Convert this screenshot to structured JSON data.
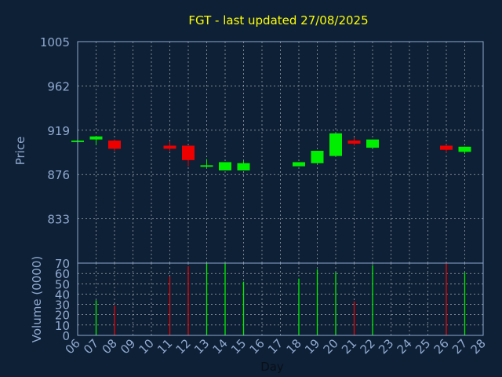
{
  "colors": {
    "background": "#0e2035",
    "grid": "#ffffff",
    "axis_text": "#8fa9d1",
    "title": "#ffff00",
    "up": "#00ee00",
    "down": "#ee0000"
  },
  "chart_data": [
    {
      "type": "candlestick",
      "title": "FGT - last updated 27/08/2025",
      "xlabel": "",
      "ylabel": "Price",
      "ylim": [
        790,
        1005
      ],
      "yticks": [
        833,
        876,
        919,
        962,
        1005
      ],
      "grid": true,
      "candles": [
        {
          "day": "06",
          "open": 908,
          "close": 909,
          "high": 909,
          "low": 908
        },
        {
          "day": "07",
          "open": 910,
          "close": 913,
          "high": 913,
          "low": 905
        },
        {
          "day": "08",
          "open": 909,
          "close": 901,
          "high": 910,
          "low": 899
        },
        {
          "day": "11",
          "open": 904,
          "close": 901,
          "high": 908,
          "low": 899
        },
        {
          "day": "12",
          "open": 904,
          "close": 890,
          "high": 904,
          "low": 884
        },
        {
          "day": "13",
          "open": 884,
          "close": 885,
          "high": 891,
          "low": 883
        },
        {
          "day": "14",
          "open": 880,
          "close": 888,
          "high": 888,
          "low": 880
        },
        {
          "day": "15",
          "open": 880,
          "close": 887,
          "high": 889,
          "low": 880
        },
        {
          "day": "18",
          "open": 884,
          "close": 888,
          "high": 888,
          "low": 884
        },
        {
          "day": "19",
          "open": 887,
          "close": 899,
          "high": 899,
          "low": 887
        },
        {
          "day": "20",
          "open": 894,
          "close": 916,
          "high": 916,
          "low": 894
        },
        {
          "day": "21",
          "open": 909,
          "close": 906,
          "high": 912,
          "low": 904
        },
        {
          "day": "22",
          "open": 902,
          "close": 910,
          "high": 910,
          "low": 902
        },
        {
          "day": "26",
          "open": 904,
          "close": 900,
          "high": 905,
          "low": 897
        },
        {
          "day": "27",
          "open": 898,
          "close": 903,
          "high": 903,
          "low": 896
        }
      ]
    },
    {
      "type": "bar",
      "xlabel": "Day",
      "ylabel": "Volume (0000)",
      "ylim": [
        0,
        70
      ],
      "yticks": [
        0,
        10,
        20,
        30,
        40,
        50,
        60,
        70
      ],
      "grid": true,
      "categories": [
        "06",
        "07",
        "08",
        "09",
        "10",
        "11",
        "12",
        "13",
        "14",
        "15",
        "16",
        "17",
        "18",
        "19",
        "20",
        "21",
        "22",
        "23",
        "24",
        "25",
        "26",
        "27",
        "28"
      ],
      "volumes": [
        {
          "day": "07",
          "value": 34,
          "direction": "up"
        },
        {
          "day": "08",
          "value": 29,
          "direction": "down"
        },
        {
          "day": "11",
          "value": 57,
          "direction": "down"
        },
        {
          "day": "12",
          "value": 67,
          "direction": "down"
        },
        {
          "day": "13",
          "value": 70,
          "direction": "up"
        },
        {
          "day": "14",
          "value": 70,
          "direction": "up"
        },
        {
          "day": "15",
          "value": 52,
          "direction": "up"
        },
        {
          "day": "18",
          "value": 55,
          "direction": "up"
        },
        {
          "day": "19",
          "value": 64,
          "direction": "up"
        },
        {
          "day": "20",
          "value": 61,
          "direction": "up"
        },
        {
          "day": "21",
          "value": 33,
          "direction": "down"
        },
        {
          "day": "22",
          "value": 68,
          "direction": "up"
        },
        {
          "day": "26",
          "value": 70,
          "direction": "down"
        },
        {
          "day": "27",
          "value": 61,
          "direction": "up"
        }
      ]
    }
  ]
}
